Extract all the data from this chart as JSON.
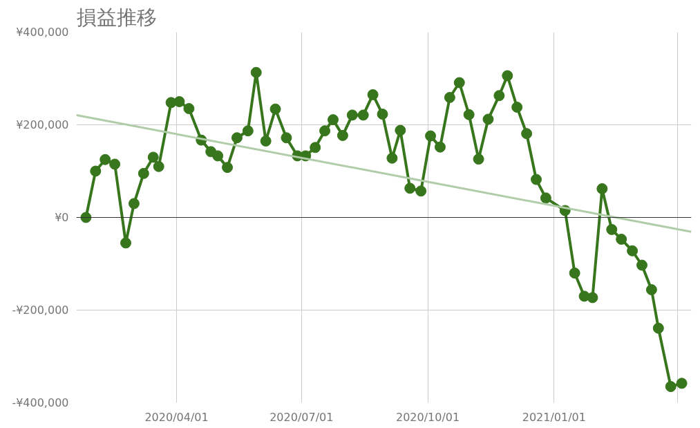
{
  "chart_data": {
    "type": "line",
    "title": "損益推移",
    "x": [
      "2020-01-26",
      "2020-02-02",
      "2020-02-09",
      "2020-02-16",
      "2020-02-24",
      "2020-03-01",
      "2020-03-08",
      "2020-03-15",
      "2020-03-19",
      "2020-03-28",
      "2020-04-03",
      "2020-04-10",
      "2020-04-19",
      "2020-04-26",
      "2020-05-01",
      "2020-05-08",
      "2020-05-15",
      "2020-05-23",
      "2020-05-29",
      "2020-06-05",
      "2020-06-12",
      "2020-06-20",
      "2020-06-28",
      "2020-07-04",
      "2020-07-11",
      "2020-07-18",
      "2020-07-24",
      "2020-07-31",
      "2020-08-07",
      "2020-08-15",
      "2020-08-22",
      "2020-08-29",
      "2020-09-05",
      "2020-09-11",
      "2020-09-18",
      "2020-09-26",
      "2020-10-03",
      "2020-10-10",
      "2020-10-17",
      "2020-10-24",
      "2020-10-31",
      "2020-11-07",
      "2020-11-14",
      "2020-11-22",
      "2020-11-28",
      "2020-12-05",
      "2020-12-12",
      "2020-12-19",
      "2020-12-26",
      "2021-01-09",
      "2021-01-16",
      "2021-01-23",
      "2021-01-29",
      "2021-02-05",
      "2021-02-12",
      "2021-02-19",
      "2021-02-27",
      "2021-03-06",
      "2021-03-13",
      "2021-03-18",
      "2021-03-27",
      "2021-04-04"
    ],
    "series": [
      {
        "color": "#38761d",
        "marker": "circle",
        "values": [
          0,
          100000,
          125000,
          115000,
          -55000,
          30000,
          95000,
          130000,
          110000,
          248000,
          250000,
          235000,
          167000,
          142000,
          133000,
          108000,
          172000,
          187000,
          313000,
          165000,
          234000,
          172000,
          133000,
          133000,
          151000,
          187000,
          211000,
          177000,
          221000,
          221000,
          265000,
          223000,
          128000,
          188000,
          63000,
          57000,
          176000,
          152000,
          259000,
          291000,
          222000,
          126000,
          212000,
          263000,
          306000,
          238000,
          181000,
          82000,
          42000,
          15000,
          -120000,
          -170000,
          -173000,
          62000,
          -26000,
          -47000,
          -72000,
          -103000,
          -156000,
          -239000,
          -365000,
          -358000
        ]
      },
      {
        "color": "#b0cca8",
        "marker": "none",
        "x": [
          "2020-01-19",
          "2021-04-11"
        ],
        "values": [
          221000,
          -31000
        ]
      }
    ],
    "xlim": [
      "2020-01-19",
      "2021-04-11"
    ],
    "xticks": [
      {
        "value": "2020-04-01",
        "label": "2020/04/01"
      },
      {
        "value": "2020-07-01",
        "label": "2020/07/01"
      },
      {
        "value": "2020-10-01",
        "label": "2020/10/01"
      },
      {
        "value": "2021-01-01",
        "label": "2021/01/01"
      },
      {
        "value": "2021-04-01",
        "label": null
      }
    ],
    "ylim": [
      -400000,
      400000
    ],
    "yticks": [
      {
        "value": -400000,
        "label": "-¥400,000"
      },
      {
        "value": -200000,
        "label": "-¥200,000"
      },
      {
        "value": 0,
        "label": "¥0"
      },
      {
        "value": 200000,
        "label": "¥200,000"
      },
      {
        "value": 400000,
        "label": "¥400,000"
      }
    ],
    "ref_lines": [
      {
        "axis": "y",
        "value": 0,
        "color": "#333333"
      }
    ],
    "grid": true,
    "line_style": "solid"
  }
}
